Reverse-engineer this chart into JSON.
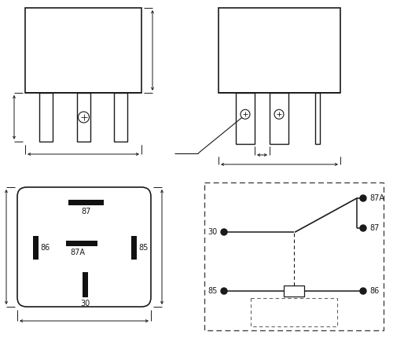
{
  "bg": "#ffffff",
  "lc": "#1a1a1a",
  "fs": 7.0,
  "lw": 1.1,
  "dlw": 0.7
}
